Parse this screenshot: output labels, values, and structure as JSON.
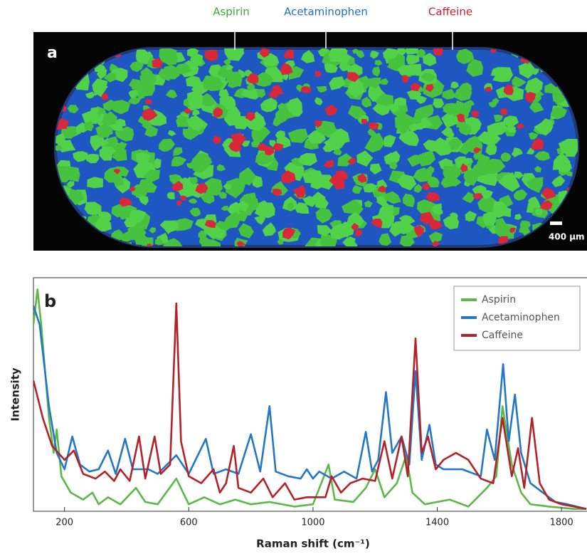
{
  "figure": {
    "panel_label": "a",
    "annotations": [
      {
        "text": "Aspirin",
        "color": "#3aa83a"
      },
      {
        "text": "Acetaminophen",
        "color": "#1f6fc0"
      },
      {
        "text": "Caffeine",
        "color": "#c8202a"
      }
    ],
    "scale_bar": "400 µm"
  },
  "chart_data": {
    "type": "line",
    "panel_label": "b",
    "x_label": "Raman shift (cm⁻¹)",
    "y_label": "Intensity",
    "xlim": [
      100,
      1882
    ],
    "ylim": [
      0,
      100
    ],
    "xticks": [
      200,
      600,
      1000,
      1400,
      1800
    ],
    "legend": "top-right",
    "series": [
      {
        "name": "Aspirin",
        "color": "#5cb848",
        "x": [
          100,
          113,
          125,
          150,
          165,
          175,
          190,
          220,
          260,
          290,
          310,
          340,
          380,
          430,
          460,
          500,
          560,
          600,
          650,
          700,
          750,
          800,
          860,
          940,
          1000,
          1050,
          1070,
          1130,
          1170,
          1200,
          1230,
          1270,
          1300,
          1320,
          1360,
          1440,
          1500,
          1560,
          1590,
          1610,
          1640,
          1670,
          1700,
          1760,
          1840,
          1880
        ],
        "values": [
          80,
          95,
          80,
          40,
          25,
          35,
          15,
          8,
          5,
          8,
          3,
          6,
          3,
          10,
          4,
          3,
          14,
          3,
          6,
          3,
          5,
          3,
          4,
          2,
          3,
          20,
          5,
          4,
          10,
          18,
          6,
          12,
          24,
          8,
          3,
          5,
          2,
          10,
          15,
          45,
          20,
          8,
          3,
          2,
          1,
          1
        ]
      },
      {
        "name": "Acetaminophen",
        "color": "#2277c6",
        "x": [
          100,
          120,
          150,
          175,
          200,
          225,
          250,
          280,
          310,
          340,
          365,
          395,
          420,
          470,
          500,
          560,
          600,
          655,
          680,
          720,
          760,
          800,
          830,
          860,
          880,
          920,
          960,
          980,
          1000,
          1020,
          1060,
          1100,
          1140,
          1170,
          1190,
          1210,
          1235,
          1255,
          1285,
          1310,
          1330,
          1350,
          1375,
          1395,
          1420,
          1480,
          1540,
          1560,
          1585,
          1612,
          1630,
          1650,
          1670,
          1700,
          1740,
          1780,
          1820,
          1880
        ],
        "values": [
          88,
          80,
          45,
          25,
          18,
          32,
          20,
          17,
          18,
          26,
          16,
          31,
          18,
          18,
          16,
          24,
          16,
          31,
          16,
          18,
          16,
          33,
          17,
          45,
          17,
          15,
          14,
          18,
          14,
          17,
          14,
          17,
          14,
          34,
          17,
          22,
          51,
          25,
          32,
          20,
          60,
          22,
          37,
          20,
          18,
          18,
          15,
          35,
          22,
          63,
          30,
          50,
          25,
          12,
          8,
          4,
          3,
          1
        ]
      },
      {
        "name": "Caffeine",
        "color": "#b22228",
        "x": [
          100,
          130,
          160,
          200,
          230,
          260,
          300,
          330,
          360,
          380,
          410,
          440,
          460,
          490,
          510,
          540,
          560,
          575,
          600,
          640,
          680,
          700,
          720,
          745,
          760,
          800,
          840,
          870,
          910,
          940,
          980,
          1040,
          1060,
          1090,
          1120,
          1160,
          1200,
          1230,
          1255,
          1285,
          1305,
          1330,
          1350,
          1370,
          1395,
          1420,
          1460,
          1500,
          1540,
          1580,
          1610,
          1640,
          1660,
          1680,
          1705,
          1730,
          1760,
          1800,
          1840,
          1880
        ],
        "values": [
          56,
          40,
          28,
          22,
          26,
          16,
          14,
          17,
          13,
          18,
          13,
          32,
          14,
          32,
          16,
          20,
          89,
          30,
          15,
          12,
          18,
          8,
          12,
          28,
          10,
          8,
          14,
          6,
          12,
          5,
          6,
          6,
          15,
          8,
          12,
          14,
          13,
          30,
          14,
          32,
          15,
          74,
          25,
          32,
          18,
          22,
          25,
          22,
          14,
          12,
          40,
          15,
          27,
          10,
          40,
          12,
          5,
          3,
          2,
          1
        ]
      }
    ]
  }
}
